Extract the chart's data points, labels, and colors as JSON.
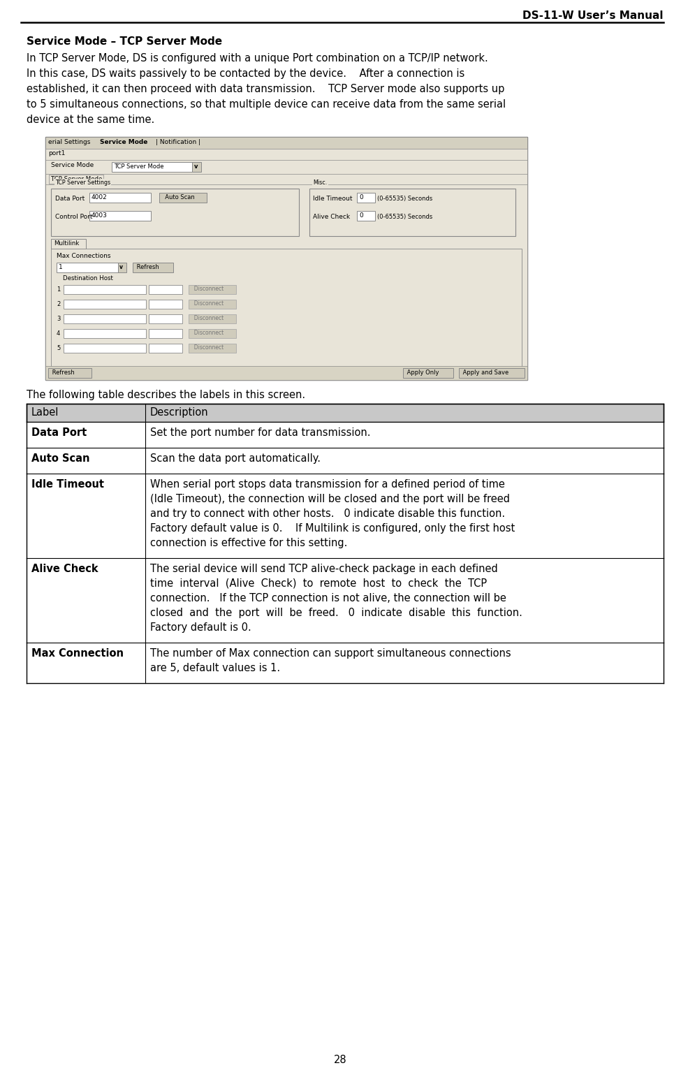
{
  "title_right": "DS-11-W User’s Manual",
  "page_number": "28",
  "section_title": "Service Mode – TCP Server Mode",
  "body_text": [
    "In TCP Server Mode, DS is configured with a unique Port combination on a TCP/IP network.",
    "In this case, DS waits passively to be contacted by the device.    After a connection is",
    "established, it can then proceed with data transmission.    TCP Server mode also supports up",
    "to 5 simultaneous connections, so that multiple device can receive data from the same serial",
    "device at the same time."
  ],
  "table_intro": "The following table describes the labels in this screen.",
  "table_headers": [
    "Label",
    "Description"
  ],
  "table_rows": [
    {
      "label": "Data Port",
      "description": "Set the port number for data transmission."
    },
    {
      "label": "Auto Scan",
      "description": "Scan the data port automatically."
    },
    {
      "label": "Idle Timeout",
      "description": "When serial port stops data transmission for a defined period of time\n(Idle Timeout), the connection will be closed and the port will be freed\nand try to connect with other hosts.   0 indicate disable this function.\nFactory default value is 0.    If Multilink is configured, only the first host\nconnection is effective for this setting."
    },
    {
      "label": "Alive Check",
      "description": "The serial device will send TCP alive-check package in each defined\ntime  interval  (Alive  Check)  to  remote  host  to  check  the  TCP\nconnection.   If the TCP connection is not alive, the connection will be\nclosed  and  the  port  will  be  freed.   0  indicate  disable  this  function.\nFactory default is 0."
    },
    {
      "label": "Max Connection",
      "description": "The number of Max connection can support simultaneous connections\nare 5, default values is 1."
    }
  ],
  "header_bg": "#c8c8c8",
  "table_border": "#000000",
  "bg_color": "#ffffff",
  "text_color": "#000000",
  "ui_bg": "#e8e4d8",
  "ui_tab_bg": "#d4d0c0",
  "ui_white": "#ffffff",
  "ui_btn_bg": "#d0ccbc",
  "ui_border": "#888888"
}
